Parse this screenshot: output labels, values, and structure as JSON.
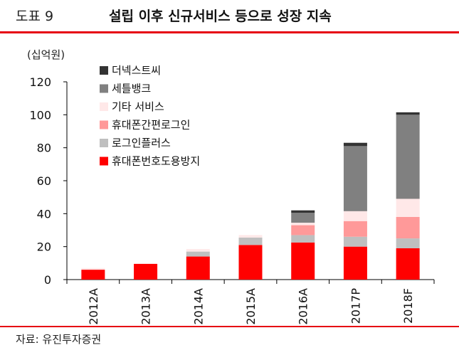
{
  "header": {
    "fig_label": "도표 9",
    "title": "설립 이후 신규서비스 등으로 성장 지속"
  },
  "footer": {
    "source": "자료: 유진투자증권"
  },
  "chart_data": {
    "type": "bar",
    "stacked": true,
    "unit_label": "(십억원)",
    "categories": [
      "2012A",
      "2013A",
      "2014A",
      "2015A",
      "2016A",
      "2017P",
      "2018F"
    ],
    "ylim": [
      0,
      120
    ],
    "yticks": [
      0,
      20,
      40,
      60,
      80,
      100,
      120
    ],
    "grid": false,
    "legend_position": "top-left",
    "series": [
      {
        "name": "휴대폰번호도용방지",
        "color": "#ff0000",
        "values": [
          6,
          9.5,
          14,
          21,
          22.5,
          20,
          19
        ]
      },
      {
        "name": "로그인플러스",
        "color": "#bfbfbf",
        "values": [
          0,
          0,
          3,
          4.5,
          4.5,
          6,
          6
        ]
      },
      {
        "name": "휴대폰간편로그인",
        "color": "#ff9999",
        "values": [
          0,
          0,
          0,
          0,
          6,
          9.5,
          13
        ]
      },
      {
        "name": "기타 서비스",
        "color": "#ffe8e8",
        "values": [
          1,
          0.5,
          1.5,
          1.5,
          1.5,
          6,
          11
        ]
      },
      {
        "name": "세틀뱅크",
        "color": "#808080",
        "values": [
          0,
          0,
          0,
          0,
          6,
          39.5,
          51
        ]
      },
      {
        "name": "더넥스트씨",
        "color": "#333333",
        "values": [
          0,
          0,
          0,
          0,
          1.5,
          2,
          1.5
        ]
      }
    ]
  }
}
